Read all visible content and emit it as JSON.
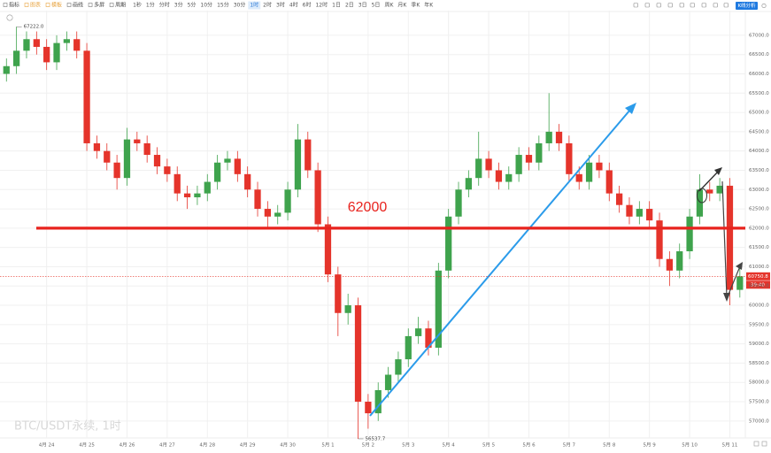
{
  "toolbar": {
    "tools": [
      "指标",
      "图表",
      "模板",
      "画线",
      "多屏",
      "周期"
    ],
    "intervals": [
      "1秒",
      "1分",
      "分时",
      "3分",
      "5分",
      "10分",
      "15分",
      "30分",
      "1时",
      "2时",
      "3时",
      "4时",
      "6时",
      "12时",
      "1日",
      "2日",
      "3日",
      "5日",
      "周K",
      "月K",
      "季K",
      "年K"
    ],
    "analysis_button": "K线分析"
  },
  "chart_data": {
    "type": "candlestick",
    "watermark": "BTC/USDT永续, 1时",
    "categories": [
      null,
      null,
      null,
      null,
      "4月 24",
      null,
      null,
      null,
      "4月 25",
      null,
      null,
      null,
      "4月 26",
      null,
      null,
      null,
      "4月 27",
      null,
      null,
      null,
      "4月 28",
      null,
      null,
      null,
      "4月 29",
      null,
      null,
      null,
      "4月 30",
      null,
      null,
      null,
      "5月 1",
      null,
      null,
      null,
      "5月 2",
      null,
      null,
      null,
      "5月 3",
      null,
      null,
      null,
      "5月 4",
      null,
      null,
      null,
      "5月 5",
      null,
      null,
      null,
      "5月 6",
      null,
      null,
      null,
      "5月 7",
      null,
      null,
      null,
      "5月 8",
      null,
      null,
      null,
      "5月 9",
      null,
      null,
      null,
      "5月 10",
      null,
      null,
      null,
      "5月 11",
      null
    ],
    "open": [
      66000,
      66200,
      66600,
      66900,
      66700,
      66300,
      66800,
      66900,
      66600,
      64200,
      64000,
      63700,
      63300,
      64300,
      64200,
      63900,
      63600,
      63400,
      62900,
      62800,
      62900,
      63200,
      63700,
      63800,
      63400,
      63000,
      62500,
      62300,
      62400,
      63000,
      64300,
      63500,
      62100,
      60800,
      59800,
      60000,
      57500,
      57200,
      57800,
      58200,
      58600,
      59200,
      59400,
      58900,
      60900,
      62300,
      63000,
      63300,
      63800,
      63500,
      63200,
      63400,
      63900,
      63700,
      64200,
      64500,
      64200,
      63400,
      63200,
      63700,
      63500,
      62900,
      62600,
      62300,
      62500,
      62200,
      61200,
      60900,
      61400,
      62300,
      63000,
      62900,
      63100,
      60400
    ],
    "high": [
      66400,
      67222,
      67100,
      67100,
      66900,
      67000,
      67100,
      67100,
      66800,
      64400,
      64200,
      63900,
      64600,
      64500,
      64400,
      64100,
      63800,
      63600,
      63100,
      63100,
      63400,
      63900,
      64000,
      64000,
      63600,
      63200,
      62700,
      62600,
      63200,
      64700,
      64500,
      63700,
      62300,
      61000,
      60300,
      60200,
      57700,
      58000,
      58400,
      58800,
      59400,
      59700,
      59600,
      61100,
      62500,
      63200,
      63500,
      64500,
      64000,
      63700,
      63600,
      64100,
      64100,
      64400,
      65500,
      64700,
      64400,
      63600,
      63900,
      63900,
      63700,
      63100,
      62800,
      62700,
      62700,
      62400,
      61400,
      61600,
      62500,
      63400,
      63200,
      63300,
      63300,
      61000
    ],
    "low": [
      65800,
      66000,
      66400,
      66500,
      66100,
      66100,
      66600,
      66400,
      64000,
      63800,
      63500,
      63000,
      63100,
      64000,
      63700,
      63400,
      63200,
      62700,
      62500,
      62600,
      62700,
      63000,
      63500,
      63200,
      62800,
      62300,
      62000,
      62100,
      62200,
      62800,
      63300,
      61900,
      60600,
      59200,
      59500,
      56537.7,
      56800,
      57000,
      57600,
      58000,
      58400,
      59000,
      58700,
      58700,
      60700,
      62100,
      62800,
      63100,
      63300,
      63000,
      63000,
      63200,
      63500,
      63500,
      64000,
      64000,
      63200,
      63000,
      63000,
      63300,
      62700,
      62400,
      62100,
      62100,
      62000,
      61000,
      60500,
      60700,
      61200,
      62100,
      62700,
      62700,
      60000,
      60200
    ],
    "close": [
      66200,
      66600,
      66900,
      66700,
      66300,
      66800,
      66900,
      66600,
      64200,
      64000,
      63700,
      63300,
      64300,
      64200,
      63900,
      63600,
      63400,
      62900,
      62800,
      62900,
      63200,
      63700,
      63800,
      63400,
      63000,
      62500,
      62300,
      62400,
      63000,
      64300,
      63500,
      62100,
      60800,
      59800,
      60000,
      57500,
      57200,
      57800,
      58200,
      58600,
      59200,
      59400,
      58900,
      60900,
      62300,
      63000,
      63300,
      63800,
      63500,
      63200,
      63400,
      63900,
      63700,
      64200,
      64500,
      64200,
      63400,
      63200,
      63700,
      63500,
      62900,
      62600,
      62300,
      62500,
      62200,
      61200,
      60900,
      61400,
      62300,
      63000,
      62900,
      63100,
      60400,
      60750.8
    ],
    "up_color": "#3fa34d",
    "down_color": "#e5342b",
    "ylim": [
      56560,
      67640
    ],
    "yticks": [
      {
        "value": 57000,
        "label": "57000.0"
      },
      {
        "value": 57500,
        "label": "57500.0"
      },
      {
        "value": 58000,
        "label": "58000.0"
      },
      {
        "value": 58500,
        "label": "58500.0"
      },
      {
        "value": 59000,
        "label": "59000.0"
      },
      {
        "value": 59500,
        "label": "59500.0"
      },
      {
        "value": 60000,
        "label": "60000.0"
      },
      {
        "value": 60500,
        "label": "60500.0"
      },
      {
        "value": 61000,
        "label": "61000.0"
      },
      {
        "value": 61500,
        "label": "61500.0"
      },
      {
        "value": 62000,
        "label": "62000.0"
      },
      {
        "value": 62500,
        "label": "62500.0"
      },
      {
        "value": 63000,
        "label": "63000.0"
      },
      {
        "value": 63500,
        "label": "63500.0"
      },
      {
        "value": 64000,
        "label": "64000.0"
      },
      {
        "value": 64500,
        "label": "64500.0"
      },
      {
        "value": 65000,
        "label": "65000.0"
      },
      {
        "value": 65500,
        "label": "65500.0"
      },
      {
        "value": 66000,
        "label": "66000.0"
      },
      {
        "value": 66500,
        "label": "66500.0"
      },
      {
        "value": 67000,
        "label": "67000.0"
      }
    ],
    "grid": true,
    "high_marker": {
      "value": 67222,
      "label": "67222.0"
    },
    "low_marker": 56537.7,
    "last_price": 60750.8,
    "countdown": "39:40",
    "level_line": {
      "value": 62000,
      "color": "#e8231e"
    }
  }
}
